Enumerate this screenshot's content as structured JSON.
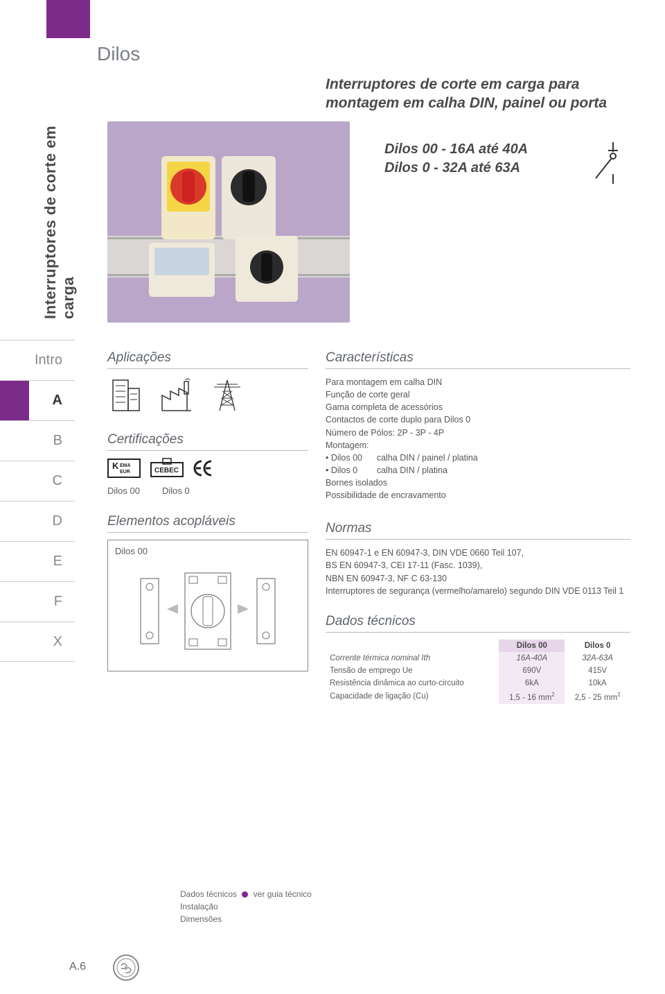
{
  "page": {
    "title": "Dilos",
    "sidebar_label": "Interruptores de corte em carga",
    "side_items": [
      "Intro",
      "A",
      "B",
      "C",
      "D",
      "E",
      "F",
      "X"
    ],
    "active_side": "A",
    "page_number": "A.6"
  },
  "hero": {
    "headline": "Interruptores de corte em carga para montagem em calha DIN, painel ou porta",
    "range1": "Dilos 00 - 16A até 40A",
    "range2": "Dilos 0 - 32A até 63A"
  },
  "left": {
    "aplicacoes_title": "Aplicações",
    "cert_title": "Certificações",
    "cert_labels": [
      "Dilos 00",
      "Dilos 0"
    ],
    "elementos_title": "Elementos acopláveis",
    "elementos_box_label": "Dilos 00"
  },
  "right": {
    "caract_title": "Características",
    "caract_lines": [
      "Para montagem em calha DIN",
      "Função de corte geral",
      "Gama completa de acessórios",
      "Contactos de corte duplo para Dilos 0",
      "Número de Pólos: 2P - 3P - 4P",
      "Montagem:",
      "• Dilos 00      calha DIN / painel / platina",
      "• Dilos 0        calha DIN / platina",
      "Bornes isolados",
      "Possibilidade de encravamento"
    ],
    "normas_title": "Normas",
    "normas_lines": [
      "EN 60947-1 e EN 60947-3, DIN VDE 0660 Teil 107,",
      "BS EN 60947-3, CEI 17-11 (Fasc. 1039),",
      "NBN EN 60947-3, NF C 63-130",
      "Interruptores de segurança (vermelho/amarelo) segundo DIN VDE 0113 Teil 1"
    ],
    "dados_title": "Dados técnicos",
    "table": {
      "columns": [
        "",
        "Dilos 00",
        "Dilos 0"
      ],
      "rows": [
        [
          "Corrente térmica nominal Ith",
          "16A-40A",
          "32A-63A"
        ],
        [
          "Tensão de emprego Ue",
          "690V",
          "415V"
        ],
        [
          "Resistência dinâmica ao curto-circuito",
          "6kA",
          "10kA"
        ],
        [
          "Capacidade de ligação (Cu)",
          "1,5 - 16 mm²",
          "2,5 - 25 mm²"
        ]
      ],
      "highlight_col": 1,
      "header_bg": "#e7d5ea",
      "col_bg": "#f3e9f5"
    }
  },
  "footer": {
    "line1_a": "Dados técnicos",
    "line1_b": "ver guia técnico",
    "line2": "Instalação",
    "line3": "Dimensões"
  },
  "colors": {
    "brand": "#7d2b8b",
    "text": "#5b5b5b",
    "lavender": "#b9a6c8"
  }
}
